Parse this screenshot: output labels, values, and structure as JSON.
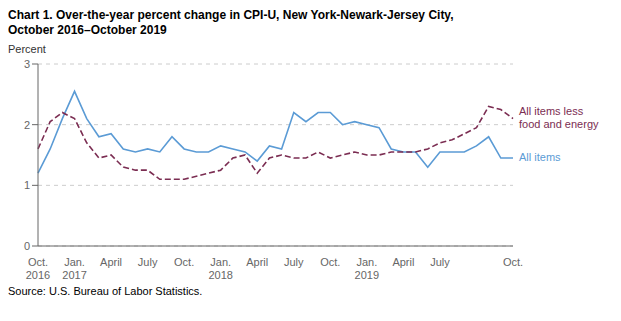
{
  "chart_data": {
    "type": "line",
    "title": "Chart 1. Over-the-year percent change in CPI-U, New York-Newark-Jersey City,\nOctober 2016–October 2019",
    "y_label": "Percent",
    "source": "Source: U.S. Bureau of Labor Statistics.",
    "categories": [
      "Oct.\n2016",
      null,
      null,
      "Jan.\n2017",
      null,
      null,
      "April",
      null,
      null,
      "July",
      null,
      null,
      "Oct.",
      null,
      null,
      "Jan.\n2018",
      null,
      null,
      "April",
      null,
      null,
      "July",
      null,
      null,
      "Oct.",
      null,
      null,
      "Jan.\n2019",
      null,
      null,
      "April",
      null,
      null,
      "July",
      null,
      null,
      null,
      null,
      null,
      "Oct."
    ],
    "series": [
      {
        "name": "All items",
        "color": "#5B9BD5",
        "line_style": "solid",
        "values": [
          1.2,
          1.6,
          2.1,
          2.55,
          2.1,
          1.8,
          1.85,
          1.6,
          1.55,
          1.6,
          1.55,
          1.8,
          1.6,
          1.55,
          1.55,
          1.65,
          1.6,
          1.55,
          1.4,
          1.65,
          1.6,
          2.2,
          2.05,
          2.2,
          2.2,
          2.0,
          2.05,
          2.0,
          1.95,
          1.6,
          1.55,
          1.55,
          1.3,
          1.55,
          1.55,
          1.55,
          1.65,
          1.8,
          1.45,
          1.45
        ]
      },
      {
        "name": "All items less\nfood and energy",
        "color": "#7B2D52",
        "line_style": "dashed",
        "values": [
          1.6,
          2.05,
          2.2,
          2.1,
          1.7,
          1.45,
          1.5,
          1.3,
          1.25,
          1.25,
          1.1,
          1.1,
          1.1,
          1.15,
          1.2,
          1.25,
          1.45,
          1.5,
          1.2,
          1.45,
          1.5,
          1.45,
          1.45,
          1.55,
          1.45,
          1.5,
          1.55,
          1.5,
          1.5,
          1.55,
          1.55,
          1.55,
          1.6,
          1.7,
          1.75,
          1.85,
          1.95,
          2.3,
          2.25,
          2.1
        ]
      }
    ],
    "ylim": [
      0,
      3
    ],
    "yticks": [
      0,
      1,
      2,
      3
    ],
    "grid": true
  }
}
